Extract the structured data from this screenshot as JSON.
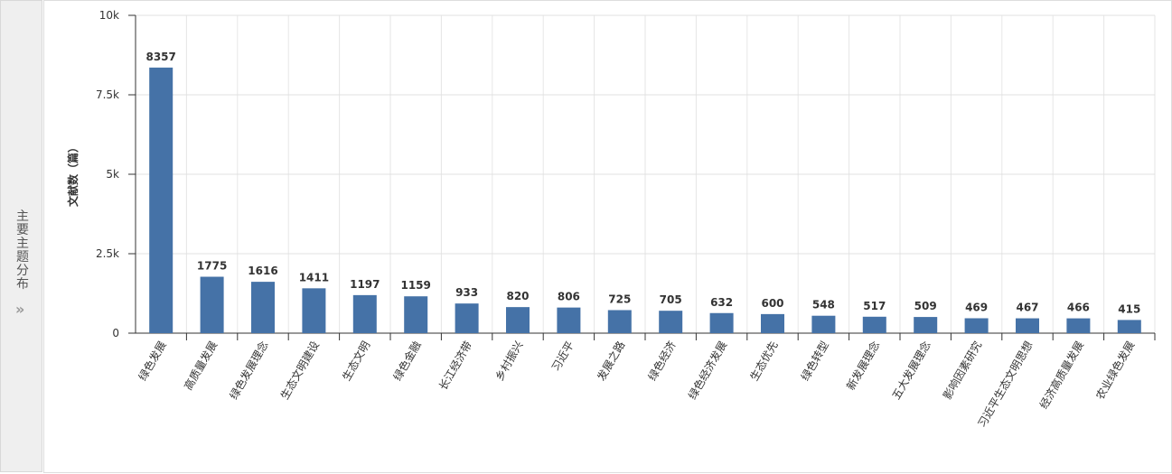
{
  "sidebar": {
    "label": "主要主题分布"
  },
  "chart_data": {
    "type": "bar",
    "y_label": "文献数（篇）",
    "categories": [
      "绿色发展",
      "高质量发展",
      "绿色发展理念",
      "生态文明建设",
      "生态文明",
      "绿色金融",
      "长江经济带",
      "乡村振兴",
      "习近平",
      "发展之路",
      "绿色经济",
      "绿色经济发展",
      "生态优先",
      "绿色转型",
      "新发展理念",
      "五大发展理念",
      "影响因素研究",
      "习近平生态文明思想",
      "经济高质量发展",
      "农业绿色发展"
    ],
    "values": [
      8357,
      1775,
      1616,
      1411,
      1197,
      1159,
      933,
      820,
      806,
      725,
      705,
      632,
      600,
      548,
      517,
      509,
      469,
      467,
      466,
      415
    ],
    "color": "#4572a7",
    "ylim": [
      0,
      10000
    ],
    "yticks": [
      0,
      {
        "value": 2500,
        "label": "2.5k"
      },
      {
        "value": 5000,
        "label": "5k"
      },
      {
        "value": 7500,
        "label": "7.5k"
      },
      {
        "value": 10000,
        "label": "10k"
      }
    ],
    "grid": true
  }
}
